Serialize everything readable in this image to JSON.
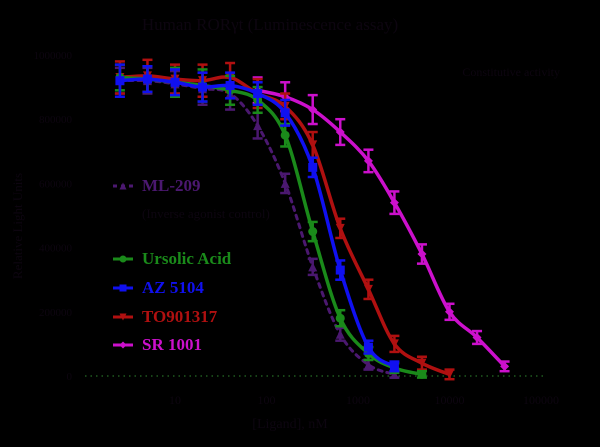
{
  "chart_data": {
    "type": "line",
    "title": "Human RORγt (Luminescence assay)",
    "xlabel": "[Ligand], nM",
    "ylabel": "Relative Light Units",
    "annotation": "Constitutive activity",
    "xscale": "log",
    "xlim": [
      1,
      500000
    ],
    "ylim": [
      0,
      1000000
    ],
    "x_ticks": [
      {
        "label": "10",
        "value": 10
      },
      {
        "label": "100",
        "value": 100
      },
      {
        "label": "1000",
        "value": 1000
      },
      {
        "label": "10000",
        "value": 10000
      },
      {
        "label": "100000",
        "value": 100000
      }
    ],
    "y_ticks": [
      {
        "label": "1000000",
        "value": 1000000
      },
      {
        "label": "800000",
        "value": 800000
      },
      {
        "label": "600000",
        "value": 600000
      },
      {
        "label": "400000",
        "value": 400000
      },
      {
        "label": "200000",
        "value": 200000
      },
      {
        "label": "0",
        "value": 0
      }
    ],
    "baseline": {
      "value": 0,
      "color": "#1f5a1f",
      "style": "dotted"
    },
    "legend_position": "center-left",
    "series": [
      {
        "name": "ML-209",
        "sublabel": "(Inverse agonist control)",
        "color": "#4b1870",
        "marker": "triangle-up",
        "dashed": true,
        "x": [
          2.5,
          5,
          10,
          20,
          40,
          80,
          160,
          320,
          640,
          1300,
          2500
        ],
        "values": [
          920000,
          920000,
          910000,
          895000,
          880000,
          780000,
          600000,
          340000,
          130000,
          35000,
          5000
        ],
        "errors": [
          40000,
          40000,
          40000,
          50000,
          50000,
          40000,
          30000,
          25000,
          20000,
          15000,
          10000
        ]
      },
      {
        "name": "Ursolic Acid",
        "sublabel": "",
        "color": "#1a8a1a",
        "marker": "circle",
        "dashed": false,
        "x": [
          2.5,
          5,
          10,
          20,
          40,
          80,
          160,
          320,
          640,
          1300,
          2500,
          5000
        ],
        "values": [
          930000,
          925000,
          915000,
          905000,
          890000,
          860000,
          750000,
          450000,
          180000,
          70000,
          25000,
          5000
        ],
        "errors": [
          40000,
          40000,
          45000,
          50000,
          45000,
          40000,
          35000,
          30000,
          25000,
          20000,
          15000,
          10000
        ]
      },
      {
        "name": "AZ 5104",
        "sublabel": "",
        "color": "#1010f0",
        "marker": "square",
        "dashed": false,
        "x": [
          2.5,
          5,
          10,
          20,
          40,
          80,
          160,
          320,
          640,
          1300,
          2500
        ],
        "values": [
          920000,
          925000,
          915000,
          900000,
          905000,
          880000,
          820000,
          650000,
          330000,
          90000,
          30000
        ],
        "errors": [
          50000,
          40000,
          40000,
          45000,
          40000,
          35000,
          40000,
          30000,
          30000,
          20000,
          15000
        ]
      },
      {
        "name": "TO901317",
        "sublabel": "",
        "color": "#b01010",
        "marker": "triangle-down",
        "dashed": false,
        "x": [
          2.5,
          5,
          10,
          20,
          40,
          80,
          160,
          320,
          640,
          1300,
          2500,
          5000,
          10000
        ],
        "values": [
          930000,
          935000,
          925000,
          920000,
          930000,
          880000,
          840000,
          720000,
          460000,
          270000,
          100000,
          40000,
          5000
        ],
        "errors": [
          50000,
          50000,
          45000,
          50000,
          45000,
          45000,
          40000,
          40000,
          30000,
          30000,
          25000,
          20000,
          15000
        ]
      },
      {
        "name": "SR 1001",
        "sublabel": "",
        "color": "#cc10cc",
        "marker": "diamond",
        "dashed": false,
        "x": [
          80,
          160,
          320,
          640,
          1300,
          2500,
          5000,
          10000,
          20000,
          40000
        ],
        "values": [
          890000,
          870000,
          830000,
          760000,
          670000,
          540000,
          380000,
          200000,
          120000,
          30000
        ],
        "errors": [
          40000,
          45000,
          45000,
          40000,
          35000,
          35000,
          30000,
          25000,
          20000,
          15000
        ]
      }
    ]
  }
}
